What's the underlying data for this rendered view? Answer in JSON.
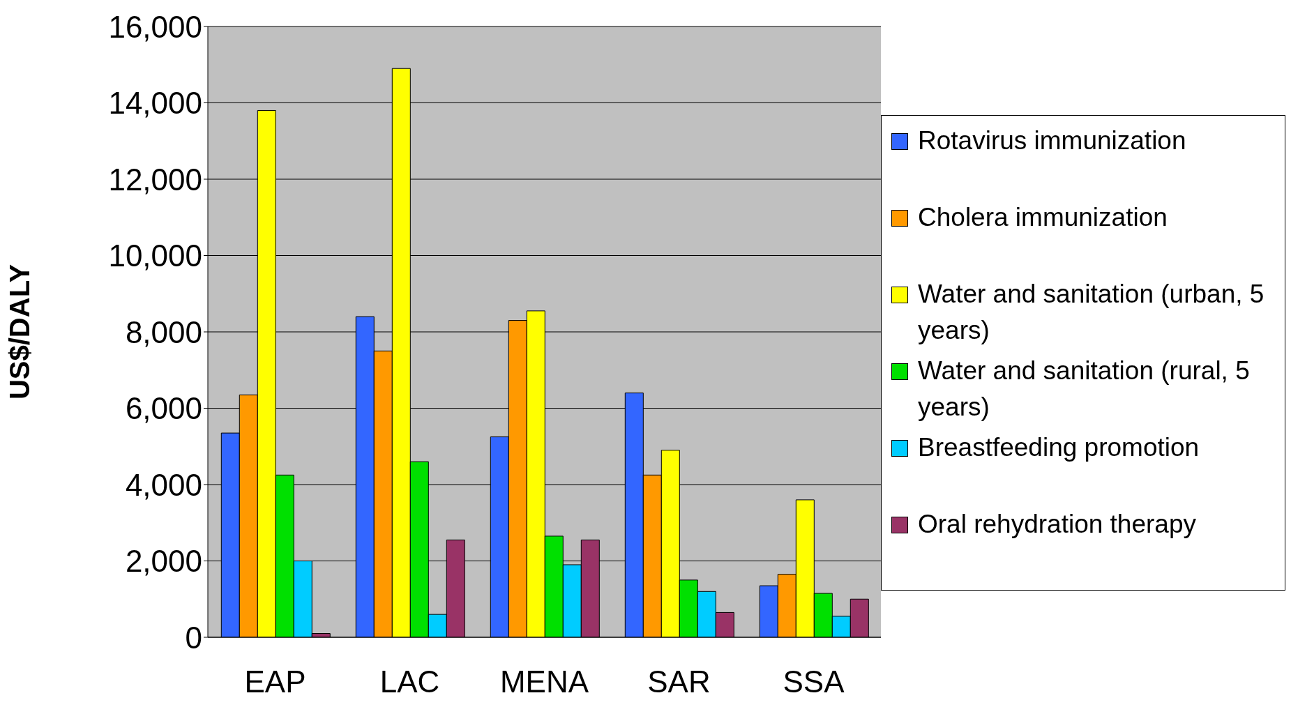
{
  "chart_data": {
    "type": "bar",
    "ylabel": "US$/DALY",
    "categories": [
      "EAP",
      "LAC",
      "MENA",
      "SAR",
      "SSA"
    ],
    "series": [
      {
        "name": "Rotavirus immunization",
        "color": "#3366ff",
        "values": [
          5350,
          8400,
          5250,
          6400,
          1350
        ]
      },
      {
        "name": "Cholera immunization",
        "color": "#ff9900",
        "values": [
          6350,
          7500,
          8300,
          4250,
          1650
        ]
      },
      {
        "name": "Water and sanitation (urban, 5 years)",
        "color": "#ffff00",
        "values": [
          13800,
          14900,
          8550,
          4900,
          3600
        ]
      },
      {
        "name": "Water and sanitation (rural, 5 years)",
        "color": "#00e000",
        "values": [
          4250,
          4600,
          2650,
          1500,
          1150
        ]
      },
      {
        "name": "Breastfeeding promotion",
        "color": "#00ccff",
        "values": [
          2000,
          600,
          1900,
          1200,
          550
        ]
      },
      {
        "name": "Oral rehydration therapy",
        "color": "#993366",
        "values": [
          100,
          2550,
          2550,
          650,
          1000
        ]
      }
    ],
    "ylim": [
      0,
      16000
    ],
    "yticks": [
      {
        "value": 0,
        "label": "0"
      },
      {
        "value": 2000,
        "label": "2,000"
      },
      {
        "value": 4000,
        "label": "4,000"
      },
      {
        "value": 6000,
        "label": "6,000"
      },
      {
        "value": 8000,
        "label": "8,000"
      },
      {
        "value": 10000,
        "label": "10,000"
      },
      {
        "value": 12000,
        "label": "12,000"
      },
      {
        "value": 14000,
        "label": "14,000"
      },
      {
        "value": 16000,
        "label": "16,000"
      }
    ],
    "grid": "y",
    "legend": "right"
  }
}
